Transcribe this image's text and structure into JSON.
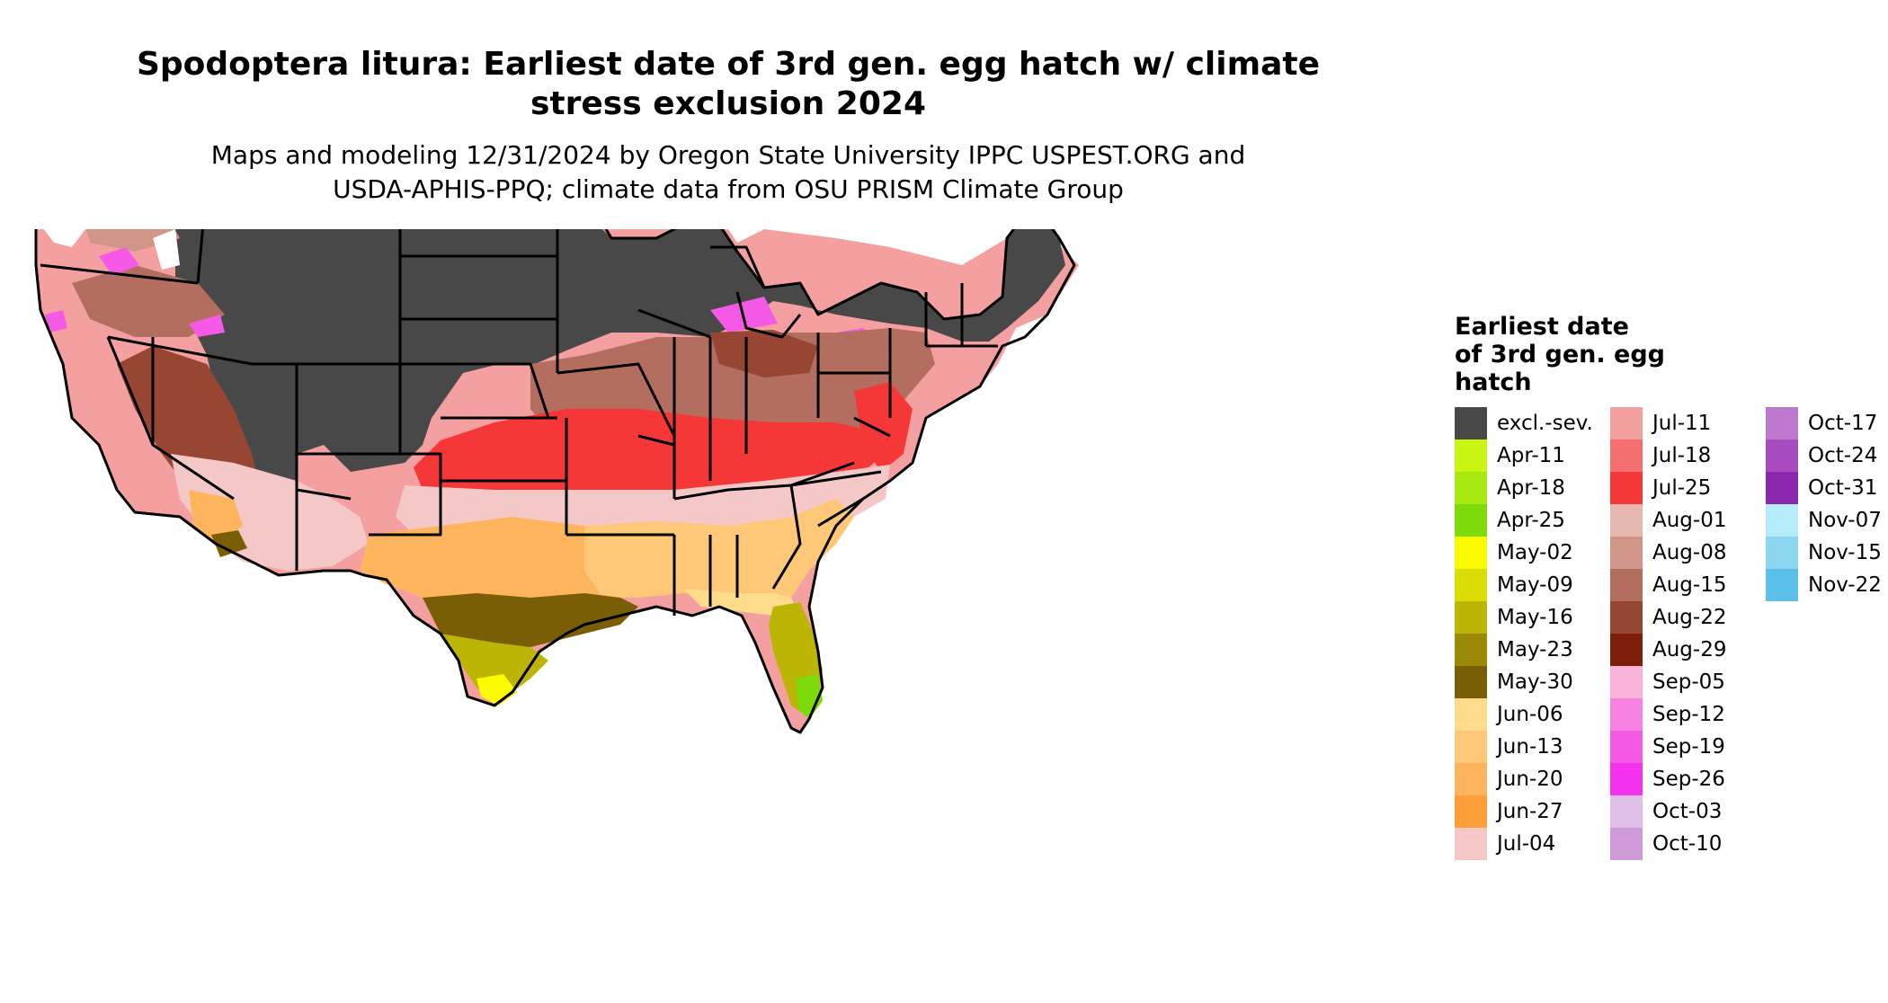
{
  "title": "Spodoptera litura: Earliest date of 3rd gen. egg hatch w/ climate stress exclusion 2024",
  "title_lines": [
    "Spodoptera litura: Earliest date of 3rd gen. egg hatch w/ climate",
    "stress exclusion 2024"
  ],
  "subtitle_lines": [
    "Maps and modeling 12/31/2024 by Oregon State University IPPC USPEST.ORG and",
    "USDA-APHIS-PPQ; climate data from OSU PRISM Climate Group"
  ],
  "legend": {
    "title_lines": [
      "Earliest date",
      "of 3rd gen. egg",
      "hatch"
    ],
    "items": [
      {
        "label": "excl.-sev.",
        "color": "#484848"
      },
      {
        "label": "Apr-11",
        "color": "#c8f511"
      },
      {
        "label": "Apr-18",
        "color": "#a6e80f"
      },
      {
        "label": "Apr-25",
        "color": "#7ddb0c"
      },
      {
        "label": "May-02",
        "color": "#fafa00"
      },
      {
        "label": "May-09",
        "color": "#dcdc05"
      },
      {
        "label": "May-16",
        "color": "#bcb505"
      },
      {
        "label": "May-23",
        "color": "#9a8a05"
      },
      {
        "label": "May-30",
        "color": "#7a5e05"
      },
      {
        "label": "Jun-06",
        "color": "#ffdc8c"
      },
      {
        "label": "Jun-13",
        "color": "#ffc878"
      },
      {
        "label": "Jun-20",
        "color": "#ffb45e"
      },
      {
        "label": "Jun-27",
        "color": "#ff9f3c"
      },
      {
        "label": "Jul-04",
        "color": "#f5c8c8"
      },
      {
        "label": "Jul-11",
        "color": "#f5a0a0"
      },
      {
        "label": "Jul-18",
        "color": "#f56e6e"
      },
      {
        "label": "Jul-25",
        "color": "#f53737"
      },
      {
        "label": "Aug-01",
        "color": "#e6b8b0"
      },
      {
        "label": "Aug-08",
        "color": "#d29688"
      },
      {
        "label": "Aug-15",
        "color": "#b46e5f"
      },
      {
        "label": "Aug-22",
        "color": "#964632"
      },
      {
        "label": "Aug-29",
        "color": "#7d1e0a"
      },
      {
        "label": "Sep-05",
        "color": "#fab4dc"
      },
      {
        "label": "Sep-12",
        "color": "#f882e0"
      },
      {
        "label": "Sep-19",
        "color": "#f55ae6"
      },
      {
        "label": "Sep-26",
        "color": "#f532f0"
      },
      {
        "label": "Oct-03",
        "color": "#e0c0e8"
      },
      {
        "label": "Oct-10",
        "color": "#d09ad8"
      },
      {
        "label": "Oct-17",
        "color": "#bc78cc"
      },
      {
        "label": "Oct-24",
        "color": "#a64cbf"
      },
      {
        "label": "Oct-31",
        "color": "#8c28b0"
      },
      {
        "label": "Nov-07",
        "color": "#b4ecfc"
      },
      {
        "label": "Nov-15",
        "color": "#8cd6f0"
      },
      {
        "label": "Nov-22",
        "color": "#5ac0e8"
      }
    ]
  },
  "map": {
    "regions": [
      {
        "zone": "Northern excluded zone",
        "color": "#484848"
      },
      {
        "zone": "Pacific coast",
        "color": "#f5a0a0"
      },
      {
        "zone": "Great Basin",
        "color": "#964632"
      },
      {
        "zone": "Desert southwest",
        "color": "#f5c8c8"
      },
      {
        "zone": "Central band",
        "color": "#f53737"
      },
      {
        "zone": "Ohio valley",
        "color": "#b46e5f"
      },
      {
        "zone": "Mid-south",
        "color": "#f5c8c8"
      },
      {
        "zone": "Southern plains",
        "color": "#ffb45e"
      },
      {
        "zone": "Southeast",
        "color": "#ffc878"
      },
      {
        "zone": "Gulf coast",
        "color": "#7a5e05"
      },
      {
        "zone": "South Texas",
        "color": "#bcb505"
      },
      {
        "zone": "Florida peninsula",
        "color": "#bcb505"
      },
      {
        "zone": "South Florida",
        "color": "#7ddb0c"
      }
    ],
    "boundary_color": "#000000"
  }
}
